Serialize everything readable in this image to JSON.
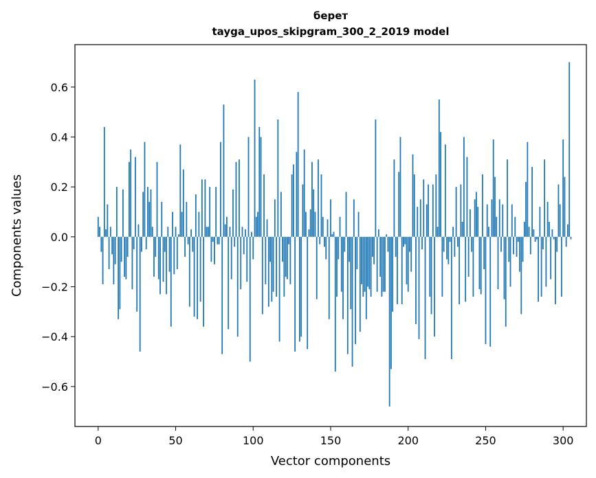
{
  "chart_data": {
    "type": "bar",
    "title_line1": "берет",
    "title_line2": "tayga_upos_skipgram_300_2_2019 model",
    "xlabel": "Vector components",
    "ylabel": "Components values",
    "xlim": [
      -15,
      315
    ],
    "ylim": [
      -0.76,
      0.77
    ],
    "xticks": [
      0,
      50,
      100,
      150,
      200,
      250,
      300
    ],
    "xtick_labels": [
      "0",
      "50",
      "100",
      "150",
      "200",
      "250",
      "300"
    ],
    "yticks": [
      -0.6,
      -0.4,
      -0.2,
      0.0,
      0.2,
      0.4,
      0.6
    ],
    "ytick_labels": [
      "−0.6",
      "−0.4",
      "−0.2",
      "0.0",
      "0.2",
      "0.4",
      "0.6"
    ],
    "bar_color": "#1f77b4",
    "values": [
      0.08,
      0.04,
      -0.06,
      -0.19,
      0.44,
      0.03,
      0.13,
      -0.13,
      0.04,
      -0.07,
      -0.19,
      -0.11,
      0.2,
      -0.33,
      -0.29,
      -0.1,
      0.19,
      -0.16,
      -0.17,
      -0.08,
      0.3,
      0.35,
      -0.21,
      -0.05,
      0.32,
      -0.3,
      0.05,
      -0.46,
      -0.06,
      0.18,
      0.38,
      -0.05,
      0.2,
      0.14,
      0.19,
      0.04,
      -0.16,
      -0.08,
      0.3,
      -0.17,
      -0.23,
      0.14,
      -0.18,
      -0.06,
      -0.23,
      0.04,
      -0.14,
      -0.36,
      0.1,
      -0.15,
      0.04,
      -0.13,
      0.01,
      0.37,
      0.1,
      0.27,
      -0.08,
      0.14,
      -0.03,
      -0.28,
      0.03,
      -0.06,
      -0.32,
      0.17,
      -0.33,
      0.1,
      -0.26,
      0.23,
      -0.36,
      0.23,
      0.04,
      0.04,
      0.2,
      -0.1,
      -0.02,
      -0.11,
      0.2,
      -0.03,
      -0.03,
      0.38,
      -0.47,
      0.53,
      0.05,
      0.08,
      -0.37,
      0.04,
      -0.17,
      0.19,
      -0.04,
      0.3,
      -0.4,
      0.31,
      -0.21,
      0.04,
      -0.07,
      0.03,
      -0.18,
      0.4,
      -0.5,
      0.02,
      -0.09,
      0.63,
      0.08,
      0.1,
      0.44,
      0.4,
      -0.31,
      0.25,
      -0.19,
      0.07,
      -0.28,
      -0.1,
      -0.26,
      -0.22,
      0.15,
      -0.24,
      0.47,
      -0.42,
      0.18,
      -0.1,
      -0.24,
      -0.16,
      -0.17,
      -0.03,
      -0.19,
      0.25,
      0.29,
      -0.46,
      0.34,
      0.58,
      -0.42,
      -0.4,
      0.21,
      0.35,
      0.1,
      -0.45,
      0.03,
      0.11,
      0.3,
      0.19,
      0.1,
      -0.25,
      0.31,
      -0.03,
      0.25,
      0.08,
      -0.04,
      -0.09,
      0.07,
      -0.33,
      0.15,
      0.01,
      0.02,
      -0.54,
      -0.24,
      -0.09,
      0.08,
      -0.22,
      -0.33,
      -0.06,
      0.18,
      -0.47,
      -0.1,
      -0.29,
      -0.52,
      0.15,
      -0.43,
      -0.13,
      0.1,
      -0.38,
      -0.19,
      -0.24,
      -0.22,
      -0.33,
      -0.2,
      -0.21,
      -0.24,
      -0.08,
      -0.11,
      0.47,
      -0.22,
      0.03,
      -0.16,
      -0.24,
      -0.22,
      -0.22,
      0.01,
      -0.06,
      -0.68,
      -0.53,
      -0.3,
      0.31,
      -0.08,
      -0.27,
      0.26,
      0.4,
      -0.27,
      -0.04,
      -0.03,
      -0.19,
      -0.22,
      -0.06,
      -0.14,
      0.33,
      0.25,
      -0.35,
      0.12,
      -0.41,
      0.15,
      -0.05,
      0.23,
      -0.49,
      0.13,
      0.21,
      -0.24,
      -0.31,
      0.21,
      -0.4,
      0.25,
      0.04,
      0.55,
      0.42,
      -0.24,
      -0.06,
      0.37,
      -0.09,
      -0.11,
      -0.02,
      -0.49,
      0.04,
      -0.08,
      0.2,
      -0.04,
      -0.27,
      0.21,
      0.06,
      0.4,
      -0.26,
      0.32,
      -0.16,
      0.11,
      -0.06,
      -0.24,
      0.15,
      0.18,
      0.12,
      -0.21,
      -0.23,
      0.25,
      -0.13,
      -0.43,
      0.13,
      0.04,
      -0.44,
      0.15,
      0.39,
      0.24,
      0.08,
      -0.21,
      0.15,
      -0.06,
      0.13,
      -0.25,
      -0.36,
      0.31,
      -0.1,
      -0.2,
      0.13,
      -0.07,
      0.08,
      -0.08,
      -0.02,
      -0.14,
      -0.31,
      -0.1,
      0.06,
      0.22,
      0.38,
      0.04,
      -0.07,
      0.28,
      0.03,
      -0.02,
      -0.01,
      -0.26,
      0.12,
      -0.24,
      -0.05,
      0.31,
      -0.2,
      0.14,
      0.06,
      -0.17,
      0.03,
      -0.01,
      -0.27,
      -0.06,
      0.21,
      0.13,
      -0.24,
      0.39,
      0.24,
      -0.04,
      0.05,
      0.7,
      -0.01
    ]
  }
}
